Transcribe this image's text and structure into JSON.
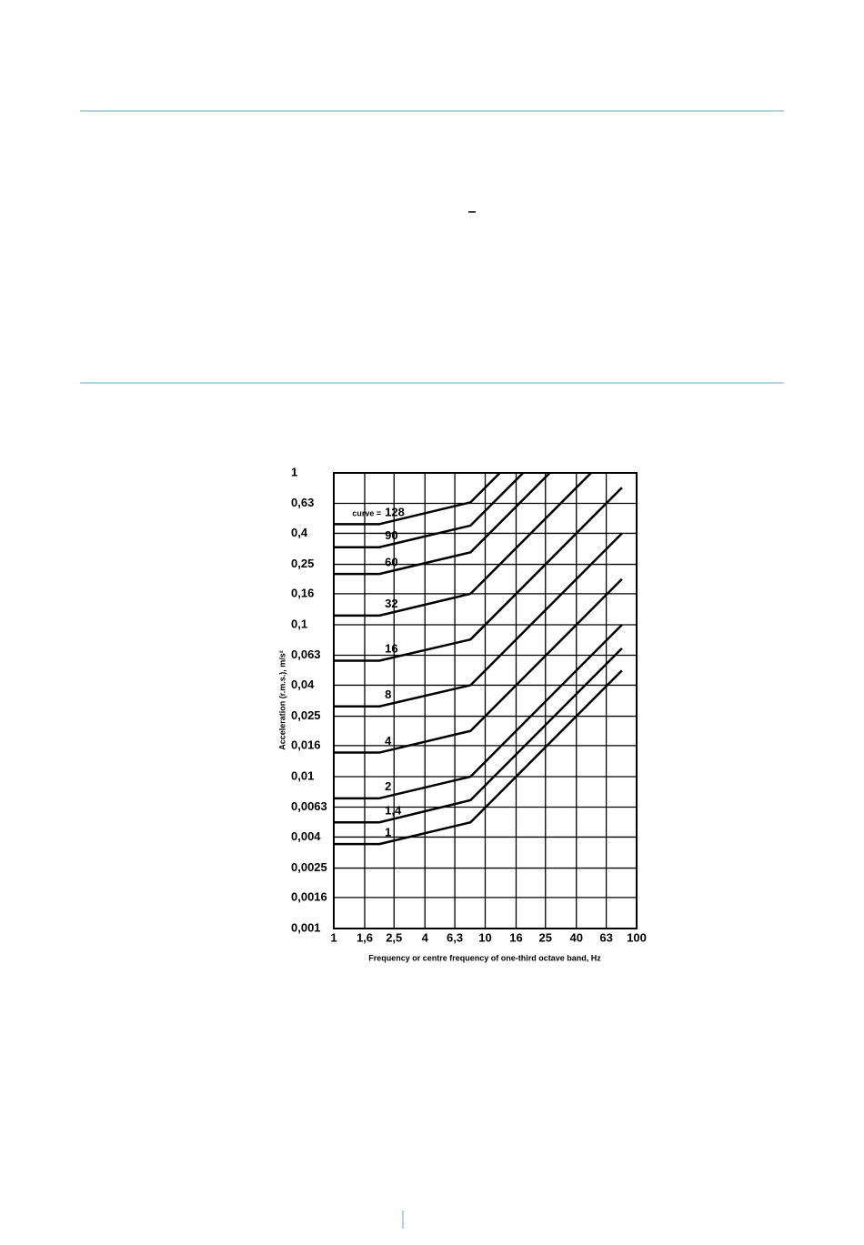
{
  "chart_data": {
    "type": "line",
    "xlabel": "Frequency or centre frequency of one-third octave band, Hz",
    "ylabel": "Acceleration (r.m.s.), m/s²",
    "annotation": "curve =",
    "xscale": "log",
    "yscale": "log",
    "grid": true,
    "xlim": [
      1,
      100
    ],
    "xticks": [
      1,
      {
        "value": 1.6,
        "label": "1,6"
      },
      {
        "value": 2.5,
        "label": "2,5"
      },
      4,
      {
        "value": 6.3,
        "label": "6,3"
      },
      10,
      16,
      25,
      40,
      63,
      100
    ],
    "ylim": [
      0.001,
      1
    ],
    "yticks": [
      {
        "value": 0.001,
        "label": "0,001"
      },
      {
        "value": 0.0016,
        "label": "0,0016"
      },
      {
        "value": 0.0025,
        "label": "0,0025"
      },
      {
        "value": 0.004,
        "label": "0,004"
      },
      {
        "value": 0.0063,
        "label": "0,0063"
      },
      {
        "value": 0.01,
        "label": "0,01"
      },
      {
        "value": 0.016,
        "label": "0,016"
      },
      {
        "value": 0.025,
        "label": "0,025"
      },
      {
        "value": 0.04,
        "label": "0,04"
      },
      {
        "value": 0.063,
        "label": "0,063"
      },
      {
        "value": 0.1,
        "label": "0,1"
      },
      {
        "value": 0.16,
        "label": "0,16"
      },
      {
        "value": 0.25,
        "label": "0,25"
      },
      {
        "value": 0.4,
        "label": "0,4"
      },
      {
        "value": 0.63,
        "label": "0,63"
      },
      1
    ],
    "series": [
      {
        "name": "128",
        "color": "#000000",
        "x": [
          1,
          2,
          8,
          12.5
        ],
        "values": [
          0.46,
          0.46,
          0.64,
          1
        ]
      },
      {
        "name": "90",
        "color": "#000000",
        "x": [
          1,
          2,
          8,
          17.8
        ],
        "values": [
          0.324,
          0.324,
          0.45,
          1
        ]
      },
      {
        "name": "60",
        "color": "#000000",
        "x": [
          1,
          2,
          8,
          26.7
        ],
        "values": [
          0.216,
          0.216,
          0.3,
          1
        ]
      },
      {
        "name": "32",
        "color": "#000000",
        "x": [
          1,
          2,
          8,
          50
        ],
        "values": [
          0.115,
          0.115,
          0.16,
          1
        ]
      },
      {
        "name": "16",
        "color": "#000000",
        "x": [
          1,
          2,
          8,
          80
        ],
        "values": [
          0.058,
          0.058,
          0.08,
          0.8
        ]
      },
      {
        "name": "8",
        "color": "#000000",
        "x": [
          1,
          2,
          8,
          80
        ],
        "values": [
          0.029,
          0.029,
          0.04,
          0.4
        ]
      },
      {
        "name": "4",
        "color": "#000000",
        "x": [
          1,
          2,
          8,
          80
        ],
        "values": [
          0.0144,
          0.0144,
          0.02,
          0.2
        ]
      },
      {
        "name": "2",
        "color": "#000000",
        "x": [
          1,
          2,
          8,
          80
        ],
        "values": [
          0.0072,
          0.0072,
          0.01,
          0.1
        ]
      },
      {
        "name": "1,4",
        "color": "#000000",
        "x": [
          1,
          2,
          8,
          80
        ],
        "values": [
          0.005,
          0.005,
          0.007,
          0.07
        ]
      },
      {
        "name": "1",
        "color": "#000000",
        "x": [
          1,
          2,
          8,
          80
        ],
        "values": [
          0.0036,
          0.0036,
          0.005,
          0.05
        ]
      }
    ]
  }
}
